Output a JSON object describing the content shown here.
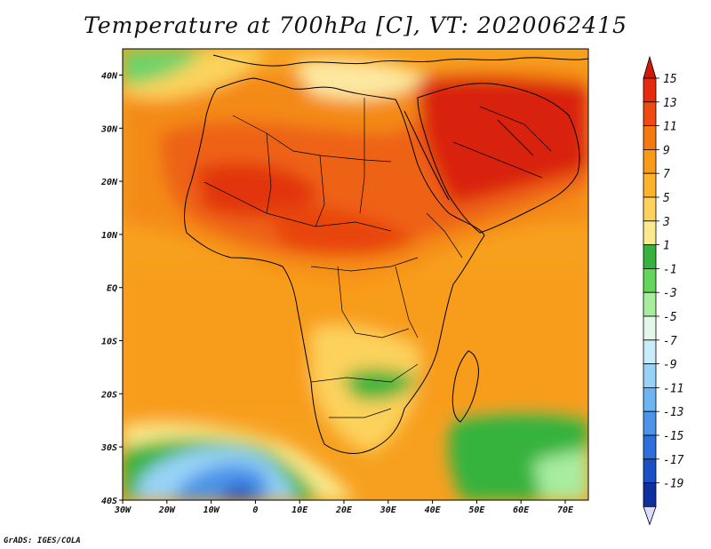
{
  "title": "Temperature at 700hPa [C], VT: 2020062415",
  "credit": "GrADS: IGES/COLA",
  "lon_ticks": [
    "30W",
    "20W",
    "10W",
    "0",
    "10E",
    "20E",
    "30E",
    "40E",
    "50E",
    "60E",
    "70E"
  ],
  "lat_ticks": [
    "40N",
    "30N",
    "20N",
    "10N",
    "EQ",
    "10S",
    "20S",
    "30S",
    "40S"
  ],
  "colorbar": {
    "labels": [
      "15",
      "13",
      "11",
      "9",
      "7",
      "5",
      "3",
      "1",
      "-1",
      "-3",
      "-5",
      "-7",
      "-9",
      "-11",
      "-13",
      "-15",
      "-17",
      "-19"
    ],
    "colors": [
      "#e8280f",
      "#ee4a12",
      "#f47a10",
      "#f99a18",
      "#fbb32a",
      "#fcd25c",
      "#fbe98e",
      "#36b33e",
      "#64d55a",
      "#a8eca0",
      "#e3f7ea",
      "#c9ecfb",
      "#98d3f7",
      "#6cb5f2",
      "#4b94ea",
      "#2e6fde",
      "#1a4fc6",
      "#0e2f9e",
      "#08197a"
    ],
    "over_color": "#cf1a0a",
    "under_color": "#dcdcff"
  },
  "map": {
    "extent": {
      "lon": [
        -30,
        75
      ],
      "lat": [
        -40,
        45
      ]
    },
    "variable": "Temperature",
    "level": "700hPa",
    "units": "C"
  }
}
